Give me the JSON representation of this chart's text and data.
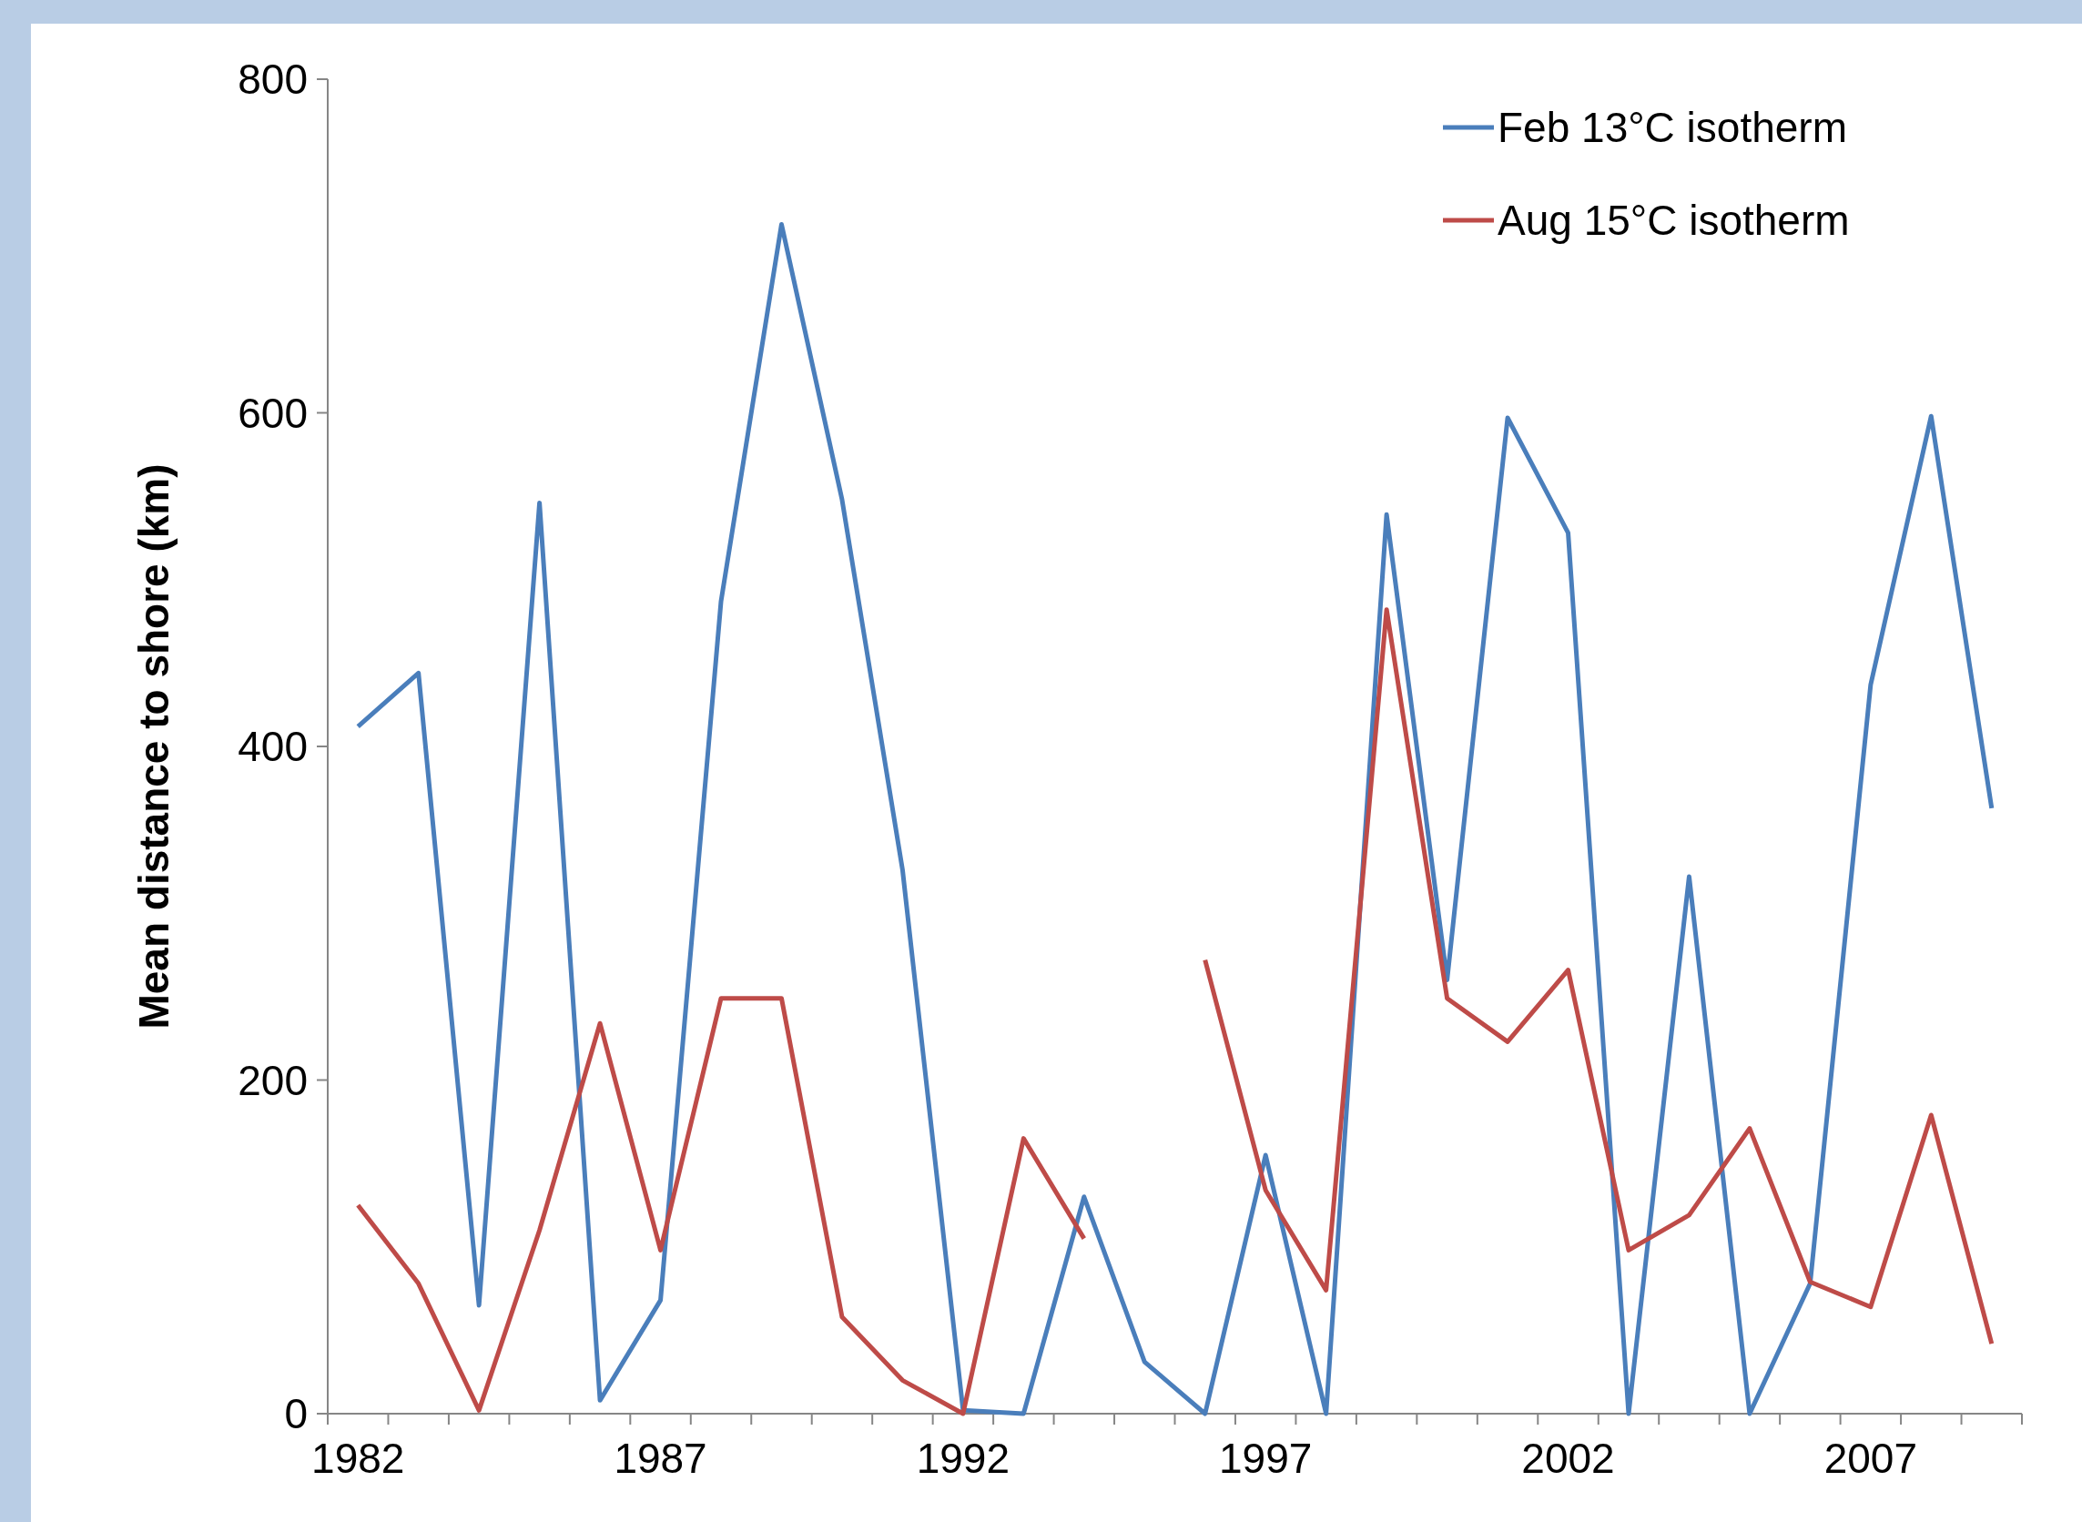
{
  "chart_data": {
    "type": "line",
    "ylabel": "Mean distance to shore (km)",
    "categories": [
      "1982",
      null,
      null,
      null,
      null,
      "1987",
      null,
      null,
      null,
      null,
      "1992",
      null,
      null,
      null,
      null,
      "1997",
      null,
      null,
      null,
      null,
      "2002",
      null,
      null,
      null,
      null,
      "2007",
      null,
      null
    ],
    "series": [
      {
        "name": "Feb 13°C isotherm",
        "color": "#4a7ebb",
        "values": [
          412,
          444,
          65,
          546,
          8,
          68,
          487,
          713,
          548,
          326,
          2,
          0,
          130,
          31,
          0,
          155,
          0,
          539,
          260,
          597,
          528,
          0,
          322,
          0,
          78,
          437,
          598,
          363
        ]
      },
      {
        "name": "Aug 15°C isotherm",
        "color": "#be4b48",
        "values": [
          125,
          78,
          2,
          110,
          234,
          98,
          249,
          249,
          58,
          20,
          0,
          165,
          105,
          null,
          272,
          134,
          74,
          482,
          249,
          223,
          266,
          98,
          119,
          171,
          79,
          64,
          179,
          42
        ]
      }
    ],
    "ylim": [
      0,
      800
    ],
    "yticks": [
      0,
      200,
      400,
      600,
      800
    ],
    "grid": false,
    "legend": "top right"
  }
}
